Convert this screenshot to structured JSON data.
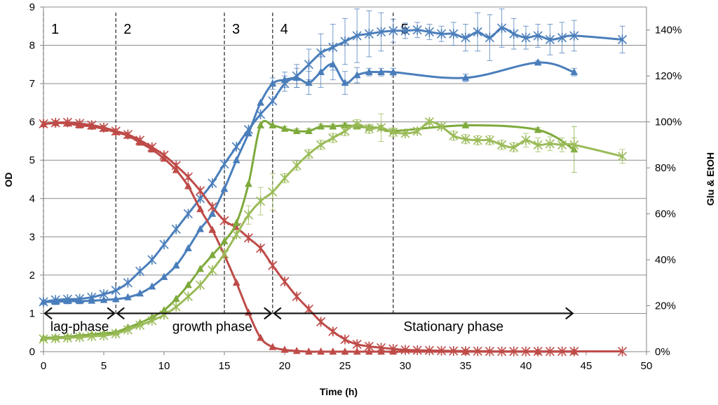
{
  "chart_data": {
    "type": "line",
    "title": "",
    "xlabel": "Time (h)",
    "ylabel": "OD",
    "y2label": "Glu & EtOH",
    "xlim": [
      0,
      50
    ],
    "ylim": [
      0,
      9
    ],
    "y2lim": [
      0,
      150
    ],
    "x_ticks": [
      "0",
      "5",
      "10",
      "15",
      "20",
      "25",
      "30",
      "35",
      "40",
      "45",
      "50"
    ],
    "y_ticks": [
      "0",
      "1",
      "2",
      "3",
      "4",
      "5",
      "6",
      "7",
      "8",
      "9"
    ],
    "y2_ticks": [
      "0%",
      "20%",
      "40%",
      "60%",
      "80%",
      "100%",
      "120%",
      "140%"
    ],
    "grid": "horizontal",
    "colors": {
      "blue": "#4a7ebb",
      "red": "#be4b48",
      "green": "#7eaa3c",
      "light_green": "#9bbb59"
    },
    "series": [
      {
        "name": "OD (triangle)",
        "axis": "left",
        "marker": "triangle",
        "color": "#4a7ebb",
        "x": [
          0,
          1,
          2,
          3,
          4,
          5,
          6,
          7,
          8,
          9,
          10,
          11,
          12,
          13,
          14,
          15,
          16,
          17,
          18,
          19,
          20,
          21,
          22,
          23,
          24,
          25,
          26,
          27,
          28,
          29,
          35,
          41,
          44
        ],
        "y": [
          1.3,
          1.3,
          1.32,
          1.32,
          1.33,
          1.35,
          1.37,
          1.42,
          1.52,
          1.7,
          1.95,
          2.25,
          2.7,
          3.2,
          3.6,
          4.25,
          5.0,
          5.7,
          6.5,
          7.0,
          7.1,
          7.15,
          7.02,
          7.3,
          7.5,
          7.02,
          7.22,
          7.3,
          7.3,
          7.3,
          7.15,
          7.55,
          7.3
        ],
        "err": [
          0,
          0,
          0,
          0,
          0,
          0,
          0,
          0,
          0,
          0,
          0,
          0,
          0,
          0,
          0,
          0,
          0,
          0,
          0,
          0.15,
          0.2,
          0.25,
          0.3,
          0.4,
          0.4,
          0.3,
          0.2,
          0.1,
          0.1,
          0.1,
          0.1,
          0.05,
          0.1
        ]
      },
      {
        "name": "OD (cross)",
        "axis": "left",
        "marker": "cross",
        "color": "#4a7ebb",
        "x": [
          0,
          1,
          2,
          3,
          4,
          5,
          6,
          7,
          8,
          9,
          10,
          11,
          12,
          13,
          14,
          15,
          16,
          17,
          18,
          19,
          20,
          21,
          22,
          23,
          24,
          25,
          26,
          27,
          28,
          29,
          30,
          31,
          32,
          33,
          34,
          35,
          36,
          37,
          38,
          39,
          40,
          41,
          42,
          43,
          44,
          48
        ],
        "y": [
          1.3,
          1.35,
          1.37,
          1.38,
          1.42,
          1.5,
          1.6,
          1.8,
          2.1,
          2.4,
          2.8,
          3.2,
          3.6,
          4.0,
          4.4,
          4.9,
          5.35,
          5.8,
          6.2,
          6.55,
          7.0,
          7.2,
          7.5,
          7.8,
          7.95,
          8.1,
          8.25,
          8.3,
          8.35,
          8.38,
          8.38,
          8.4,
          8.35,
          8.3,
          8.3,
          8.2,
          8.35,
          8.2,
          8.45,
          8.3,
          8.2,
          8.25,
          8.15,
          8.2,
          8.25,
          8.15
        ],
        "err": [
          0,
          0,
          0,
          0,
          0,
          0,
          0,
          0,
          0,
          0,
          0,
          0,
          0,
          0,
          0,
          0,
          0,
          0,
          0,
          0,
          0.2,
          0.3,
          0.4,
          0.5,
          0.6,
          0.6,
          0.7,
          0.6,
          0.5,
          0.3,
          0.2,
          0.2,
          0.2,
          0.2,
          0.3,
          0.35,
          0.5,
          0.6,
          0.5,
          0.4,
          0.3,
          0.3,
          0.4,
          0.4,
          0.4,
          0.35
        ]
      },
      {
        "name": "Glu (triangle)",
        "axis": "right",
        "marker": "triangle",
        "color": "#be4b48",
        "x": [
          0,
          1,
          2,
          3,
          4,
          5,
          6,
          7,
          8,
          9,
          10,
          11,
          12,
          13,
          14,
          15,
          16,
          17,
          18,
          19,
          20,
          21,
          22,
          23,
          24,
          25,
          26,
          27,
          28,
          29,
          35,
          41,
          44
        ],
        "y": [
          99,
          99.5,
          99.3,
          98.5,
          98,
          97,
          95.5,
          94,
          91,
          88,
          84,
          79,
          72,
          62,
          53,
          42,
          30,
          17,
          6,
          2,
          0.8,
          0.3,
          0,
          0,
          0,
          0,
          0,
          0,
          0,
          0,
          0,
          0,
          0
        ],
        "err": [
          0,
          0,
          0,
          0,
          0,
          0,
          0,
          0,
          0,
          0,
          0,
          0,
          0,
          0,
          0,
          0,
          0,
          0,
          0,
          0,
          0,
          0,
          0,
          0,
          0,
          0,
          0,
          0,
          0,
          0,
          0,
          0,
          0
        ]
      },
      {
        "name": "Glu (cross)",
        "axis": "right",
        "marker": "cross",
        "color": "#be4b48",
        "x": [
          0,
          1,
          2,
          3,
          4,
          5,
          6,
          7,
          8,
          9,
          10,
          11,
          12,
          13,
          14,
          15,
          16,
          17,
          18,
          19,
          20,
          21,
          22,
          23,
          24,
          25,
          26,
          27,
          28,
          29,
          30,
          31,
          32,
          33,
          34,
          35,
          36,
          37,
          38,
          39,
          40,
          41,
          42,
          43,
          44,
          48
        ],
        "y": [
          99.2,
          99.6,
          99.8,
          99.3,
          98.6,
          97.5,
          96,
          94.5,
          92,
          89,
          85.5,
          81,
          76,
          70,
          63,
          57,
          54,
          49.5,
          45,
          37.5,
          30.5,
          24,
          18.5,
          13,
          8.8,
          5.3,
          3.2,
          2.3,
          1.7,
          1.2,
          0.8,
          0.6,
          0.5,
          0.4,
          0.3,
          0.25,
          0.2,
          0.15,
          0.1,
          0.1,
          0.1,
          0.1,
          0.1,
          0.1,
          0.1,
          0.1
        ],
        "err": [
          1,
          1,
          1,
          1,
          1,
          1,
          1,
          1,
          1,
          1,
          1,
          1,
          1,
          1,
          1,
          1,
          1,
          1,
          1,
          1,
          1,
          1,
          1,
          1,
          1,
          1,
          1,
          1,
          0,
          0,
          0,
          0,
          0,
          0,
          0,
          0,
          0,
          0,
          0,
          0,
          0,
          0,
          0,
          0,
          0,
          0
        ]
      },
      {
        "name": "EtOH (triangle)",
        "axis": "right",
        "marker": "triangle",
        "color": "#7eaa3c",
        "x": [
          0,
          1,
          2,
          3,
          4,
          5,
          6,
          7,
          8,
          9,
          10,
          11,
          12,
          13,
          14,
          15,
          16,
          17,
          18,
          19,
          20,
          21,
          22,
          23,
          24,
          25,
          26,
          27,
          28,
          29,
          35,
          41,
          44
        ],
        "y": [
          6,
          6.2,
          6.5,
          7,
          7.5,
          8,
          8.5,
          10.5,
          12.5,
          15,
          18,
          23,
          29,
          36,
          42,
          48,
          56,
          73,
          98.5,
          98.5,
          97,
          96,
          96,
          98,
          98,
          98.5,
          98,
          97.5,
          97.5,
          96,
          98.5,
          96.5,
          88
        ],
        "err": [
          0,
          0,
          0,
          0,
          0,
          0,
          0,
          0,
          0,
          0,
          0,
          0,
          0,
          0,
          0,
          0,
          0,
          0,
          0,
          0,
          1,
          1,
          1,
          1,
          1,
          1,
          1,
          1,
          1,
          1,
          1,
          1,
          10
        ]
      },
      {
        "name": "EtOH (cross)",
        "axis": "right",
        "marker": "cross",
        "color": "#9bbb59",
        "x": [
          0,
          1,
          2,
          3,
          4,
          5,
          6,
          7,
          8,
          9,
          10,
          11,
          12,
          13,
          14,
          15,
          16,
          17,
          18,
          19,
          20,
          21,
          22,
          23,
          24,
          25,
          26,
          27,
          28,
          29,
          30,
          31,
          32,
          33,
          34,
          35,
          36,
          37,
          38,
          39,
          40,
          41,
          42,
          43,
          44,
          48
        ],
        "y": [
          5.5,
          5.8,
          6,
          6.3,
          6.7,
          7,
          7.8,
          9.5,
          11.5,
          13.5,
          16,
          19.5,
          24,
          29,
          35.5,
          42.5,
          51,
          59.5,
          65.5,
          69.5,
          75.5,
          81,
          86,
          90,
          93,
          96,
          99,
          97,
          97.5,
          95.5,
          95,
          96,
          100,
          98,
          94,
          92.5,
          92,
          92,
          90,
          89,
          92,
          90,
          90.5,
          90,
          90,
          85
        ],
        "err": [
          0,
          0,
          0,
          0,
          0,
          0,
          0,
          0,
          0,
          0,
          0,
          0,
          0,
          0,
          0,
          0,
          0,
          4,
          6,
          8,
          2,
          2,
          2,
          2,
          2,
          2,
          2,
          2,
          6,
          2,
          1,
          1,
          1,
          1,
          2,
          2,
          2,
          2,
          2,
          2,
          3,
          3,
          3,
          3,
          3,
          3
        ]
      }
    ],
    "phase_lines": [
      {
        "x": 0,
        "label": "1"
      },
      {
        "x": 6,
        "label": "2"
      },
      {
        "x": 15,
        "label": "3"
      },
      {
        "x": 19,
        "label": "4"
      },
      {
        "x": 29,
        "label": "5"
      }
    ],
    "phase_arrows": [
      {
        "from": 0,
        "to": 6,
        "y": 1.0,
        "label": "lag-phase",
        "label_x": 3
      },
      {
        "from": 6,
        "to": 19,
        "y": 1.0,
        "label": "growth phase",
        "label_x": 14
      },
      {
        "from": 19,
        "to": 44,
        "y": 1.0,
        "label": "Stationary phase",
        "label_x": 34
      }
    ]
  }
}
